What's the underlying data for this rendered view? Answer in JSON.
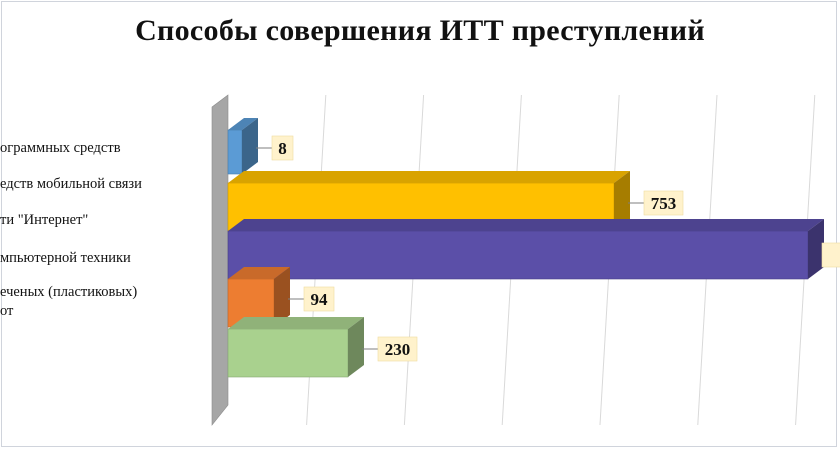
{
  "chart_data": {
    "type": "bar",
    "orientation": "horizontal-3d",
    "title": "Способы совершения ИТТ преступлений",
    "categories": [
      [
        "ограммных средств"
      ],
      [
        "едств мобильной связи"
      ],
      [
        "ти \"Интернет\""
      ],
      [
        "мпьютерной техники"
      ],
      [
        "еченых (пластиковых)",
        "от"
      ]
    ],
    "series": [
      {
        "values": [
          8,
          753,
          null,
          94,
          230
        ],
        "value_labels": [
          "8",
          "753",
          "",
          "94",
          "230"
        ],
        "colors": [
          "#5b9bd5",
          "#ffc000",
          "#5b4fa8",
          "#ed7d31",
          "#a9d18e"
        ]
      }
    ],
    "bars": [
      {
        "label": "8",
        "color": "#5b9bd5",
        "value": 8
      },
      {
        "label": "753",
        "color": "#ffc000",
        "value": 753
      },
      {
        "label": "",
        "color": "#5b4fa8",
        "value": 1180
      },
      {
        "label": "94",
        "color": "#ed7d31",
        "value": 94
      },
      {
        "label": "230",
        "color": "#a9d18e",
        "value": 230
      }
    ],
    "xlim": [
      0,
      1200
    ],
    "grid": true,
    "legend": "none"
  }
}
